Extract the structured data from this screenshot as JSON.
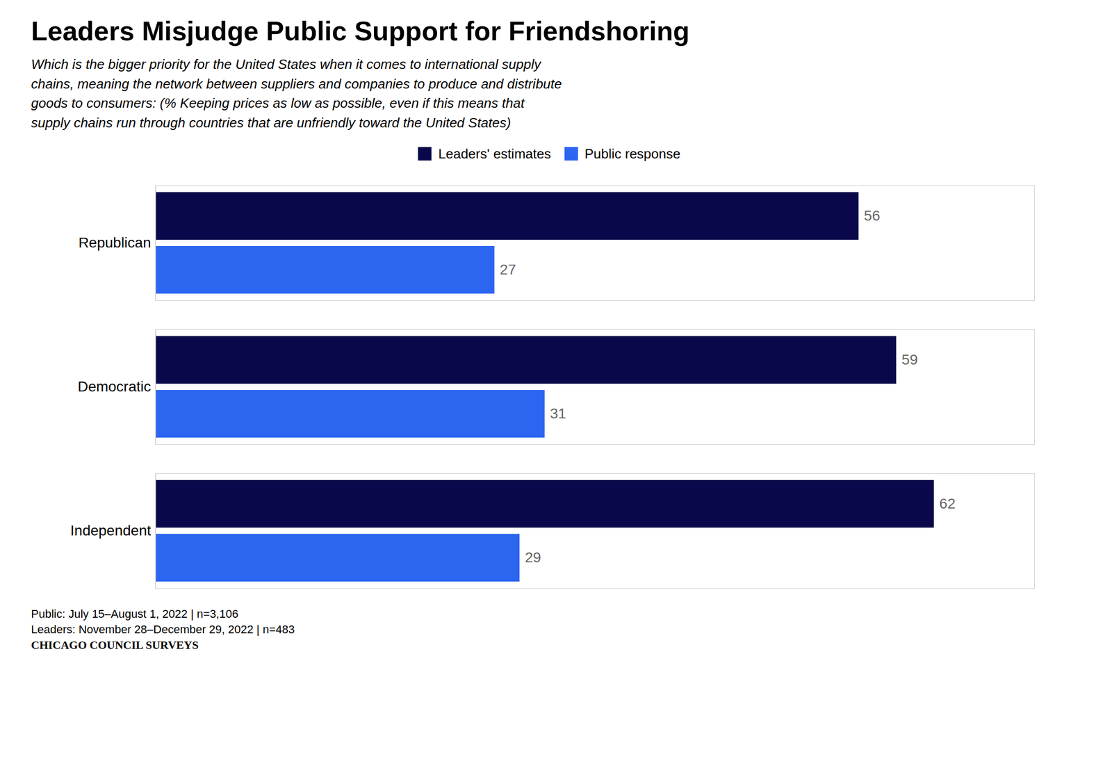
{
  "chart_data": {
    "type": "bar",
    "orientation": "horizontal",
    "title": "Leaders Misjudge Public Support for Friendshoring",
    "subtitle": "Which is the bigger priority for the United States when it comes to international supply\nchains, meaning the network between suppliers and companies to produce and distribute\ngoods to consumers: (% Keeping prices as low as possible, even if this means that\nsupply chains run through countries that are unfriendly toward the United States)",
    "categories": [
      "Republican",
      "Democratic",
      "Independent"
    ],
    "series": [
      {
        "name": "Leaders' estimates",
        "color": "#08084a",
        "values": [
          56,
          59,
          62
        ]
      },
      {
        "name": "Public response",
        "color": "#2b65f0",
        "values": [
          27,
          31,
          29
        ]
      }
    ],
    "xlim": [
      0,
      70
    ],
    "data_labels": true,
    "tick_labels": "y",
    "legend": "top",
    "grid": false,
    "annotations": [
      "Public: July 15–August 1, 2022 | n=3,106",
      "Leaders: November 28–December 29, 2022 | n=483",
      "CHICAGO COUNCIL SURVEYS"
    ]
  }
}
